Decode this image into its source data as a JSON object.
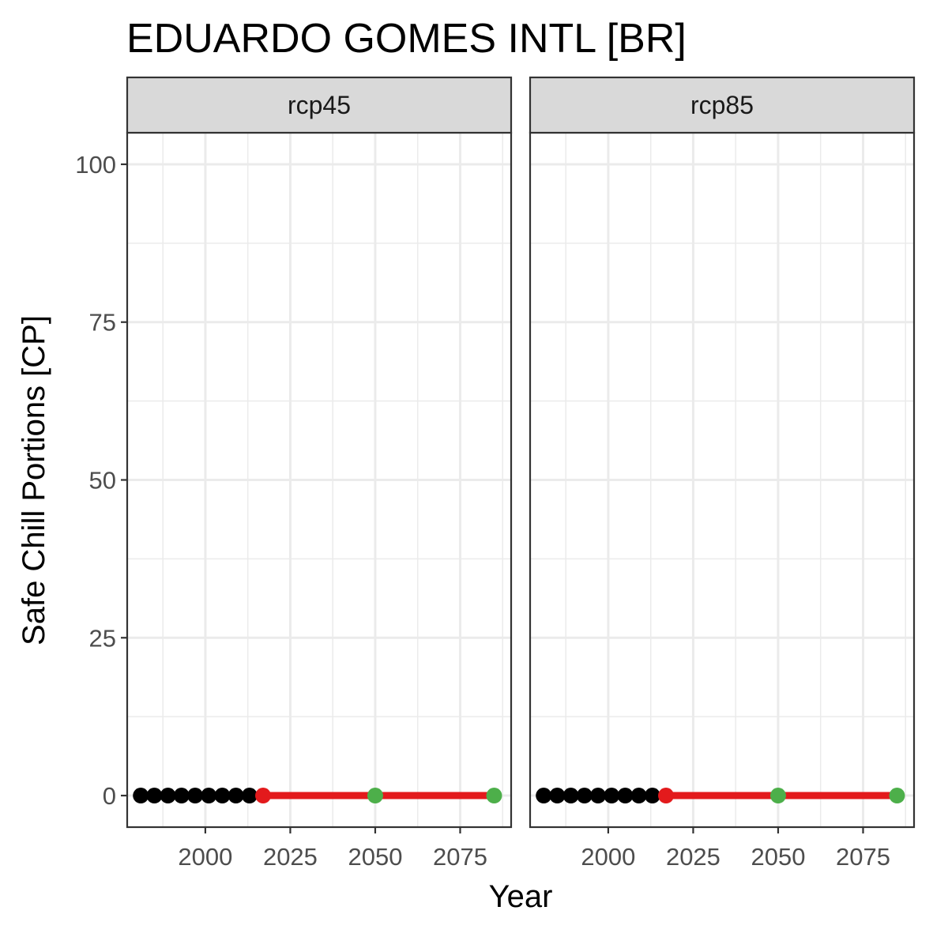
{
  "chart_data": {
    "type": "scatter",
    "title": "EDUARDO GOMES INTL [BR]",
    "xlabel": "Year",
    "ylabel": "Safe Chill Portions [CP]",
    "xlim": [
      1977,
      2090
    ],
    "ylim": [
      -5,
      105
    ],
    "x_ticks": [
      2000,
      2025,
      2050,
      2075
    ],
    "y_ticks": [
      0,
      25,
      50,
      75,
      100
    ],
    "grid": true,
    "colors": {
      "historic": "#000000",
      "future_trend": "#e31a1c",
      "scenario": "#4daf4a"
    },
    "panels": [
      {
        "label": "rcp45",
        "historic_points": {
          "x": [
            1981,
            1985,
            1989,
            1993,
            1997,
            2001,
            2005,
            2009,
            2013
          ],
          "y": [
            0,
            0,
            0,
            0,
            0,
            0,
            0,
            0,
            0
          ]
        },
        "trend_line": {
          "x": [
            2017,
            2085
          ],
          "y": [
            0,
            0
          ]
        },
        "red_points": {
          "x": [
            2017
          ],
          "y": [
            0
          ]
        },
        "green_points": {
          "x": [
            2050,
            2085
          ],
          "y": [
            0,
            0
          ]
        }
      },
      {
        "label": "rcp85",
        "historic_points": {
          "x": [
            1981,
            1985,
            1989,
            1993,
            1997,
            2001,
            2005,
            2009,
            2013
          ],
          "y": [
            0,
            0,
            0,
            0,
            0,
            0,
            0,
            0,
            0
          ]
        },
        "trend_line": {
          "x": [
            2017,
            2085
          ],
          "y": [
            0,
            0
          ]
        },
        "red_points": {
          "x": [
            2017
          ],
          "y": [
            0
          ]
        },
        "green_points": {
          "x": [
            2050,
            2085
          ],
          "y": [
            0,
            0
          ]
        }
      }
    ]
  }
}
